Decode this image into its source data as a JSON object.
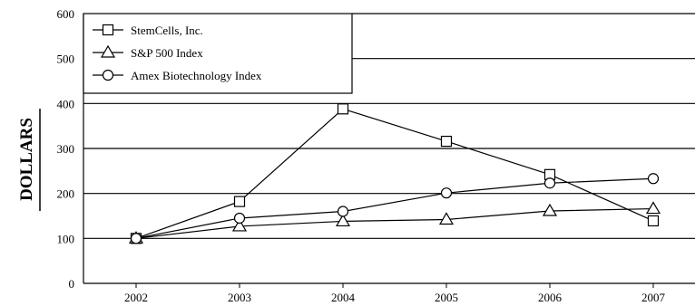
{
  "chart_data": {
    "type": "line",
    "title": "",
    "xlabel": "",
    "ylabel": "DOLLARS",
    "x": [
      "2002",
      "2003",
      "2004",
      "2005",
      "2006",
      "2007"
    ],
    "ylim": [
      0,
      600
    ],
    "yticks": [
      "0",
      "100",
      "200",
      "300",
      "400",
      "500",
      "600"
    ],
    "grid": "horizontal",
    "legend": "top-left",
    "series": [
      {
        "name": "StemCells, Inc.",
        "marker": "square",
        "values": [
          100,
          182,
          388,
          316,
          242,
          139
        ]
      },
      {
        "name": "S&P 500 Index",
        "marker": "triangle",
        "values": [
          100,
          127,
          138,
          142,
          161,
          166
        ]
      },
      {
        "name": "Amex Biotechnology Index",
        "marker": "circle",
        "values": [
          100,
          145,
          160,
          201,
          223,
          233
        ]
      }
    ]
  }
}
